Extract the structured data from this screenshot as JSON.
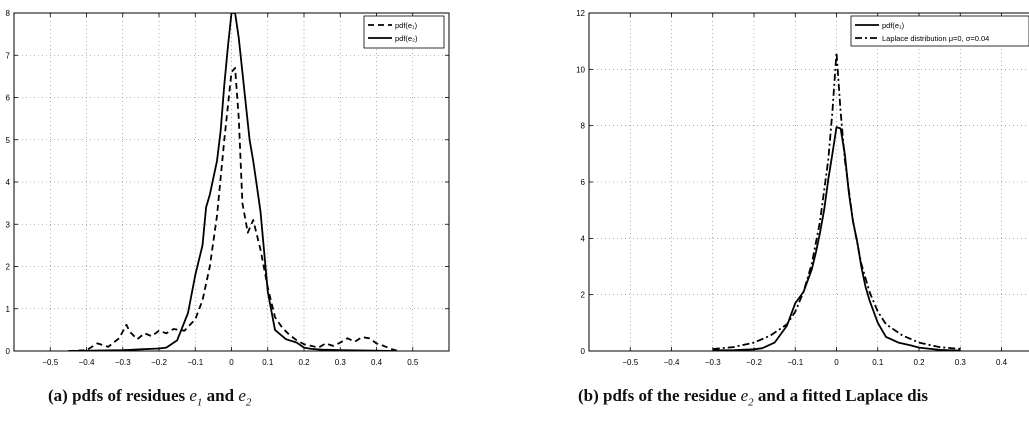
{
  "chart_data": [
    {
      "type": "line",
      "title": "",
      "xlabel": "",
      "ylabel": "",
      "xlim": [
        -0.6,
        0.6
      ],
      "ylim": [
        0,
        8
      ],
      "x_ticks": [
        -0.5,
        -0.4,
        -0.3,
        -0.2,
        -0.1,
        0,
        0.1,
        0.2,
        0.3,
        0.4,
        0.5
      ],
      "x_tick_labels": [
        "−0.5",
        "−0.4",
        "−0.3",
        "−0.2",
        "−0.1",
        "0",
        "0.1",
        "0.2",
        "0.3",
        "0.4",
        "0.5"
      ],
      "y_ticks": [
        0,
        1,
        2,
        3,
        4,
        5,
        6,
        7,
        8
      ],
      "y_tick_labels": [
        "0",
        "1",
        "2",
        "3",
        "4",
        "5",
        "6",
        "7",
        "8"
      ],
      "grid": true,
      "legend_position": "top-right",
      "series": [
        {
          "name": "pdf(e₁)",
          "style": "dashed",
          "x": [
            -0.45,
            -0.4,
            -0.37,
            -0.34,
            -0.31,
            -0.29,
            -0.28,
            -0.26,
            -0.24,
            -0.22,
            -0.2,
            -0.18,
            -0.16,
            -0.13,
            -0.1,
            -0.08,
            -0.06,
            -0.04,
            -0.02,
            0,
            0.01,
            0.02,
            0.03,
            0.045,
            0.06,
            0.08,
            0.1,
            0.12,
            0.14,
            0.16,
            0.18,
            0.2,
            0.22,
            0.24,
            0.26,
            0.28,
            0.3,
            0.32,
            0.34,
            0.36,
            0.38,
            0.4,
            0.42,
            0.44,
            0.46
          ],
          "y": [
            0,
            0.02,
            0.18,
            0.1,
            0.3,
            0.62,
            0.45,
            0.28,
            0.42,
            0.35,
            0.48,
            0.42,
            0.52,
            0.48,
            0.75,
            1.2,
            2.0,
            3.2,
            5.0,
            6.6,
            6.7,
            5.5,
            3.5,
            2.8,
            3.1,
            2.4,
            1.5,
            0.8,
            0.55,
            0.38,
            0.25,
            0.16,
            0.12,
            0.08,
            0.18,
            0.12,
            0.2,
            0.3,
            0.22,
            0.33,
            0.3,
            0.18,
            0.12,
            0.05,
            0
          ]
        },
        {
          "name": "pdf(e₂)",
          "style": "solid",
          "x": [
            -0.45,
            -0.3,
            -0.25,
            -0.2,
            -0.18,
            -0.15,
            -0.12,
            -0.1,
            -0.08,
            -0.07,
            -0.06,
            -0.05,
            -0.04,
            -0.03,
            -0.02,
            -0.01,
            0,
            0.01,
            0.02,
            0.03,
            0.04,
            0.05,
            0.06,
            0.07,
            0.08,
            0.1,
            0.12,
            0.15,
            0.18,
            0.2,
            0.22,
            0.25,
            0.3,
            0.45
          ],
          "y": [
            0,
            0.02,
            0.04,
            0.06,
            0.08,
            0.25,
            0.9,
            1.8,
            2.5,
            3.4,
            3.7,
            4.1,
            4.5,
            5.2,
            6.3,
            7.2,
            8.0,
            8.0,
            7.4,
            6.6,
            5.8,
            5.0,
            4.5,
            3.9,
            3.3,
            1.4,
            0.5,
            0.28,
            0.2,
            0.08,
            0.05,
            0.03,
            0.02,
            0
          ]
        }
      ]
    },
    {
      "type": "line",
      "title": "",
      "xlabel": "",
      "ylabel": "",
      "xlim": [
        -0.6,
        0.6
      ],
      "ylim": [
        0,
        12
      ],
      "x_ticks": [
        -0.5,
        -0.4,
        -0.3,
        -0.2,
        -0.1,
        0,
        0.1,
        0.2,
        0.3,
        0.4,
        0.5
      ],
      "x_tick_labels": [
        "−0.5",
        "−0.4",
        "−0.3",
        "−0.2",
        "−0.1",
        "0",
        "0.1",
        "0.2",
        "0.3",
        "0.4",
        "0.5"
      ],
      "y_ticks": [
        0,
        2,
        4,
        6,
        8,
        10,
        12
      ],
      "y_tick_labels": [
        "0",
        "2",
        "4",
        "6",
        "8",
        "10",
        "12"
      ],
      "grid": true,
      "legend_position": "top-right",
      "series": [
        {
          "name": "pdf(e₁)",
          "style": "solid",
          "x": [
            -0.3,
            -0.25,
            -0.2,
            -0.18,
            -0.15,
            -0.12,
            -0.1,
            -0.08,
            -0.06,
            -0.05,
            -0.04,
            -0.03,
            -0.02,
            -0.01,
            0,
            0.01,
            0.02,
            0.03,
            0.04,
            0.05,
            0.06,
            0.07,
            0.08,
            0.1,
            0.12,
            0.15,
            0.18,
            0.2,
            0.25,
            0.3
          ],
          "y": [
            0.02,
            0.03,
            0.06,
            0.1,
            0.3,
            0.9,
            1.7,
            2.1,
            2.9,
            3.5,
            4.2,
            5.0,
            6.1,
            7.0,
            7.95,
            7.9,
            7.0,
            5.6,
            4.6,
            3.9,
            3.0,
            2.3,
            1.8,
            1.0,
            0.5,
            0.3,
            0.2,
            0.12,
            0.04,
            0.01
          ]
        },
        {
          "name": "Laplace distribution μ=0, σ=0.04",
          "style": "dashdot",
          "x": [
            -0.3,
            -0.25,
            -0.2,
            -0.16,
            -0.12,
            -0.1,
            -0.08,
            -0.06,
            -0.04,
            -0.02,
            -0.01,
            0,
            0.01,
            0.02,
            0.04,
            0.06,
            0.08,
            0.1,
            0.12,
            0.16,
            0.2,
            0.25,
            0.3
          ],
          "y": [
            0.07,
            0.14,
            0.3,
            0.55,
            0.95,
            1.4,
            2.1,
            3.1,
            4.6,
            6.8,
            8.5,
            10.6,
            8.5,
            6.8,
            4.6,
            3.1,
            2.1,
            1.4,
            0.95,
            0.55,
            0.3,
            0.14,
            0.07
          ]
        }
      ]
    }
  ],
  "captions": {
    "a_prefix": "(a) pdfs of residues",
    "a_and": "and",
    "b_prefix": "(b) pdfs of the residue",
    "b_suffix": "and a fitted Laplace dis",
    "e_letter": "e",
    "sub_1": "1",
    "sub_2": "2"
  }
}
